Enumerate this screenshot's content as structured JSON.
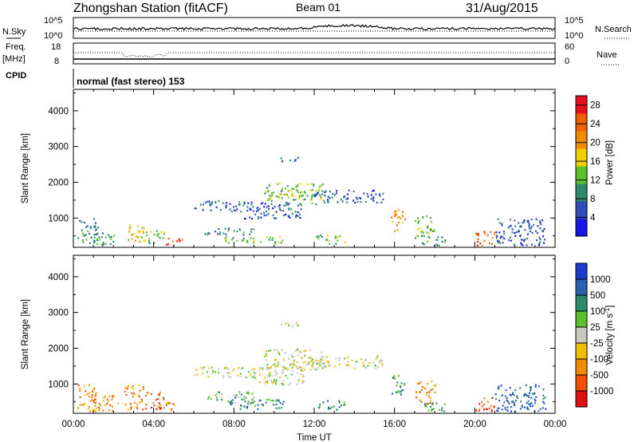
{
  "header": {
    "station": "Zhongshan Station (fitACF)",
    "beam": "Beam 01",
    "date": "31/Aug/2015"
  },
  "strip_panels": {
    "sky_label": "N.Sky",
    "sky_ticks": [
      "10^5",
      "10^0"
    ],
    "search_label": "N.Search",
    "search_ticks": [
      "10^5",
      "10^0"
    ],
    "freq_label_1": "Freq.",
    "freq_label_2": "[MHz]",
    "freq_ticks": [
      "18",
      "8"
    ],
    "nave_label": "Nave",
    "nave_ticks": [
      "60",
      "0"
    ],
    "cpid_label": "CPID",
    "cpid_text": "normal (fast stereo) 153"
  },
  "chart_data": [
    {
      "type": "heatmap",
      "title": "",
      "xlabel": "",
      "ylabel": "Slant Range [km]",
      "x_unit": "hours UT",
      "xlim": [
        0,
        24
      ],
      "ylim": [
        180,
        4600
      ],
      "yticks": [
        1000,
        2000,
        3000,
        4000
      ],
      "colorbar": {
        "label": "Power [dB]",
        "ticks": [
          "4",
          "8",
          "12",
          "16",
          "20",
          "24",
          "28"
        ],
        "tick_values": [
          4,
          8,
          12,
          16,
          20,
          24,
          28
        ],
        "range": [
          0,
          30
        ],
        "colors": [
          "#1616e8",
          "#2c4db8",
          "#2a8a6a",
          "#5cc02a",
          "#f0d000",
          "#f08a00",
          "#f06000",
          "#e8101a"
        ]
      },
      "echo_regions": [
        {
          "x": [
            0.2,
            1.2
          ],
          "y": [
            250,
            1000
          ],
          "level": 2
        },
        {
          "x": [
            1.0,
            2.2
          ],
          "y": [
            250,
            600
          ],
          "level": 2
        },
        {
          "x": [
            2.5,
            3.5
          ],
          "y": [
            350,
            850
          ],
          "level": 4
        },
        {
          "x": [
            3.5,
            4.5
          ],
          "y": [
            300,
            700
          ],
          "level": 3
        },
        {
          "x": [
            4.6,
            5.4
          ],
          "y": [
            250,
            500
          ],
          "level": 6
        },
        {
          "x": [
            6.5,
            9.0
          ],
          "y": [
            550,
            750
          ],
          "level": 2
        },
        {
          "x": [
            7.5,
            10.5
          ],
          "y": [
            300,
            500
          ],
          "level": 3
        },
        {
          "x": [
            6.0,
            8.5
          ],
          "y": [
            1200,
            1500
          ],
          "level": 1
        },
        {
          "x": [
            8.5,
            11.5
          ],
          "y": [
            1000,
            1500
          ],
          "level": 1
        },
        {
          "x": [
            9.5,
            12.5
          ],
          "y": [
            1400,
            2000
          ],
          "level": 3
        },
        {
          "x": [
            10.0,
            11.0
          ],
          "y": [
            1550,
            1700
          ],
          "level": 4
        },
        {
          "x": [
            10.3,
            11.2
          ],
          "y": [
            2600,
            2750
          ],
          "level": 1
        },
        {
          "x": [
            12.0,
            15.5
          ],
          "y": [
            1450,
            1800
          ],
          "level": 1
        },
        {
          "x": [
            12.0,
            13.5
          ],
          "y": [
            300,
            550
          ],
          "level": 3
        },
        {
          "x": [
            15.8,
            16.5
          ],
          "y": [
            650,
            1250
          ],
          "level": 5
        },
        {
          "x": [
            17.0,
            18.0
          ],
          "y": [
            450,
            1100
          ],
          "level": 3
        },
        {
          "x": [
            17.2,
            18.5
          ],
          "y": [
            250,
            500
          ],
          "level": 2
        },
        {
          "x": [
            20.0,
            21.0
          ],
          "y": [
            250,
            650
          ],
          "level": 6
        },
        {
          "x": [
            21.0,
            23.5
          ],
          "y": [
            250,
            1000
          ],
          "level": 1
        }
      ]
    },
    {
      "type": "heatmap",
      "title": "",
      "xlabel": "Time UT",
      "ylabel": "Slant Range [km]",
      "x_unit": "hours UT",
      "xlim": [
        0,
        24
      ],
      "ylim": [
        180,
        4600
      ],
      "yticks": [
        1000,
        2000,
        3000,
        4000
      ],
      "xticks": [
        "00:00",
        "04:00",
        "08:00",
        "12:00",
        "16:00",
        "20:00",
        "00:00"
      ],
      "colorbar": {
        "label": "Velocity [m s^-1]",
        "ticks": [
          "1000",
          "500",
          "100",
          "25",
          "-25",
          "-100",
          "-500",
          "-1000"
        ],
        "colors": [
          "#1a3cd0",
          "#2a60b0",
          "#2a8a6a",
          "#5cc02a",
          "#c8c8c0",
          "#f0c000",
          "#f08a00",
          "#f05000",
          "#e01010"
        ]
      },
      "echo_regions": [
        {
          "x": [
            0.2,
            1.2
          ],
          "y": [
            250,
            1000
          ],
          "level": 6
        },
        {
          "x": [
            1.0,
            2.2
          ],
          "y": [
            250,
            700
          ],
          "level": 6
        },
        {
          "x": [
            2.5,
            3.5
          ],
          "y": [
            300,
            1000
          ],
          "level": 6
        },
        {
          "x": [
            3.5,
            4.5
          ],
          "y": [
            300,
            800
          ],
          "level": 7
        },
        {
          "x": [
            4.6,
            5.4
          ],
          "y": [
            250,
            500
          ],
          "level": 6
        },
        {
          "x": [
            6.5,
            9.0
          ],
          "y": [
            500,
            800
          ],
          "level": 3
        },
        {
          "x": [
            7.5,
            10.5
          ],
          "y": [
            300,
            600
          ],
          "level": 2
        },
        {
          "x": [
            6.0,
            8.5
          ],
          "y": [
            1200,
            1500
          ],
          "level": 4
        },
        {
          "x": [
            8.5,
            11.5
          ],
          "y": [
            1000,
            1500
          ],
          "level": 4
        },
        {
          "x": [
            9.5,
            12.5
          ],
          "y": [
            1400,
            2000
          ],
          "level": 4
        },
        {
          "x": [
            10.3,
            11.2
          ],
          "y": [
            2600,
            2750
          ],
          "level": 4
        },
        {
          "x": [
            12.0,
            15.5
          ],
          "y": [
            1450,
            1800
          ],
          "level": 4
        },
        {
          "x": [
            12.0,
            13.5
          ],
          "y": [
            300,
            550
          ],
          "level": 2
        },
        {
          "x": [
            15.8,
            16.5
          ],
          "y": [
            650,
            1250
          ],
          "level": 2
        },
        {
          "x": [
            17.0,
            18.0
          ],
          "y": [
            450,
            1100
          ],
          "level": 6
        },
        {
          "x": [
            17.2,
            18.5
          ],
          "y": [
            250,
            500
          ],
          "level": 2
        },
        {
          "x": [
            20.0,
            21.0
          ],
          "y": [
            250,
            650
          ],
          "level": 7
        },
        {
          "x": [
            21.0,
            23.5
          ],
          "y": [
            250,
            1000
          ],
          "level": 1
        }
      ]
    }
  ]
}
